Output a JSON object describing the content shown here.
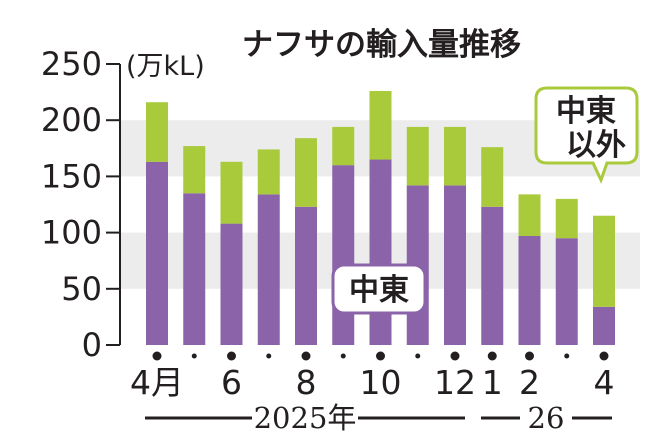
{
  "chart_data": {
    "type": "bar",
    "stacked": true,
    "title": "ナフサの輸入量推移",
    "unit": "(万kL)",
    "ylim": [
      0,
      250
    ],
    "yticks": [
      "0",
      "50",
      "100",
      "150",
      "200",
      "250"
    ],
    "grid": "alternating horizontal bands",
    "categories": [
      "2025-04",
      "2025-05",
      "2025-06",
      "2025-07",
      "2025-08",
      "2025-09",
      "2025-10",
      "2025-11",
      "2025-12",
      "2026-01",
      "2026-02",
      "2026-03",
      "2026-04"
    ],
    "x_tick_labels": [
      "4月",
      "",
      "6",
      "",
      "8",
      "",
      "10",
      "",
      "12",
      "1",
      "2",
      "",
      "4"
    ],
    "year_labels": [
      "2025年",
      "26"
    ],
    "series": [
      {
        "name": "中東",
        "color": "#8b63a9",
        "values": [
          163,
          135,
          108,
          134,
          123,
          160,
          165,
          142,
          142,
          123,
          97,
          95,
          34
        ]
      },
      {
        "name": "中東以外",
        "color": "#a8ca3b",
        "values": [
          53,
          42,
          55,
          40,
          61,
          34,
          61,
          52,
          52,
          53,
          37,
          35,
          81
        ]
      }
    ],
    "callouts": [
      {
        "lines": [
          "中東"
        ]
      },
      {
        "lines": [
          "中東",
          "以外"
        ]
      }
    ]
  }
}
